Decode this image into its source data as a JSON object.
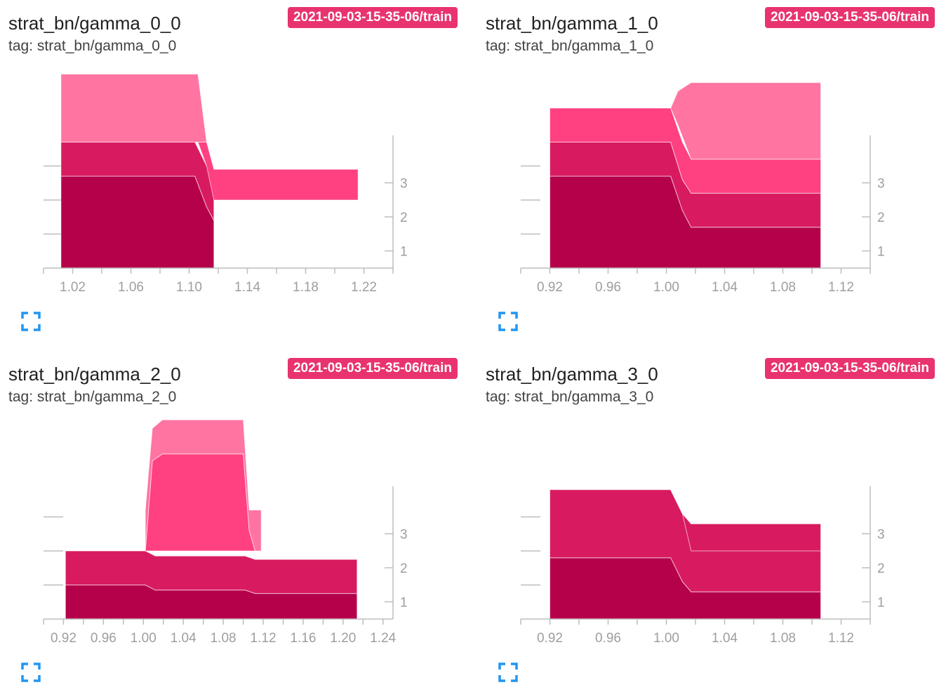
{
  "colors": {
    "layers": [
      "#b5004a",
      "#d81b60",
      "#ff4081",
      "#ff74a0"
    ],
    "axis": "#bdbdbd",
    "tick_text": "#9e9e9e",
    "badge": "#e8336f",
    "expand_icon": "#2196f3"
  },
  "cards": [
    {
      "title": "strat_bn/gamma_0_0",
      "tag": "tag: strat_bn/gamma_0_0",
      "run": "2021-09-03-15-35-06/train",
      "expand_icon": "fullscreen-icon"
    },
    {
      "title": "strat_bn/gamma_1_0",
      "tag": "tag: strat_bn/gamma_1_0",
      "run": "2021-09-03-15-35-06/train",
      "expand_icon": "fullscreen-icon"
    },
    {
      "title": "strat_bn/gamma_2_0",
      "tag": "tag: strat_bn/gamma_2_0",
      "run": "2021-09-03-15-35-06/train",
      "expand_icon": "fullscreen-icon"
    },
    {
      "title": "strat_bn/gamma_3_0",
      "tag": "tag: strat_bn/gamma_3_0",
      "run": "2021-09-03-15-35-06/train",
      "expand_icon": "fullscreen-icon"
    }
  ],
  "chart_data": [
    {
      "type": "area",
      "xlim": [
        1.0,
        1.24
      ],
      "x_ticks": [
        1.02,
        1.06,
        1.1,
        1.14,
        1.18,
        1.22
      ],
      "x_tick_labels": [
        "1.02",
        "1.06",
        "1.10",
        "1.14",
        "1.18",
        "1.22"
      ],
      "y_ticks": [
        1,
        2,
        3
      ],
      "y_tick_labels": [
        "1",
        "2",
        "3"
      ],
      "grid": false,
      "layers": [
        {
          "x": [
            1.012,
            1.104,
            1.112,
            1.117
          ],
          "bottom": [
            0,
            0,
            0,
            0
          ],
          "top": [
            2.7,
            2.7,
            1.8,
            1.4
          ]
        },
        {
          "x": [
            1.012,
            1.104,
            1.112,
            1.117
          ],
          "bottom": [
            2.7,
            2.7,
            1.8,
            1.4
          ],
          "top": [
            3.7,
            3.7,
            3.0,
            2.9
          ]
        },
        {
          "x": [
            1.106,
            1.112,
            1.117,
            1.216
          ],
          "bottom": [
            3.7,
            3.0,
            2.0,
            2.0
          ],
          "top": [
            3.7,
            3.7,
            2.9,
            2.9
          ]
        },
        {
          "x": [
            1.012,
            1.102,
            1.106,
            1.112,
            1.117
          ],
          "bottom": [
            3.7,
            3.7,
            3.7,
            3.7,
            3.7
          ],
          "top": [
            5.7,
            5.7,
            5.7,
            3.7,
            3.7
          ]
        }
      ]
    },
    {
      "type": "area",
      "xlim": [
        0.9,
        1.14
      ],
      "x_ticks": [
        0.92,
        0.96,
        1.0,
        1.04,
        1.08,
        1.12
      ],
      "x_tick_labels": [
        "0.92",
        "0.96",
        "1.00",
        "1.04",
        "1.08",
        "1.12"
      ],
      "y_ticks": [
        1,
        2,
        3
      ],
      "y_tick_labels": [
        "1",
        "2",
        "3"
      ],
      "grid": false,
      "layers": [
        {
          "x": [
            0.92,
            1.003,
            1.011,
            1.017,
            1.106
          ],
          "bottom": [
            0,
            0,
            0,
            0,
            0
          ],
          "top": [
            2.7,
            2.7,
            1.7,
            1.2,
            1.2
          ]
        },
        {
          "x": [
            0.92,
            1.003,
            1.011,
            1.017,
            1.106
          ],
          "bottom": [
            2.7,
            2.7,
            1.7,
            1.2,
            1.2
          ],
          "top": [
            3.7,
            3.7,
            2.6,
            2.2,
            2.2
          ]
        },
        {
          "x": [
            0.92,
            1.003,
            1.011,
            1.017,
            1.106
          ],
          "bottom": [
            3.7,
            3.7,
            2.6,
            2.2,
            2.2
          ],
          "top": [
            4.7,
            4.7,
            3.7,
            3.2,
            3.2
          ]
        },
        {
          "x": [
            1.003,
            1.008,
            1.017,
            1.106
          ],
          "bottom": [
            4.7,
            4.2,
            3.2,
            3.2
          ],
          "top": [
            4.7,
            5.2,
            5.45,
            5.45
          ]
        }
      ]
    },
    {
      "type": "area",
      "xlim": [
        0.9,
        1.25
      ],
      "x_ticks": [
        0.92,
        0.96,
        1.0,
        1.04,
        1.08,
        1.12,
        1.16,
        1.2,
        1.24
      ],
      "x_tick_labels": [
        "0.92",
        "0.96",
        "1.00",
        "1.04",
        "1.08",
        "1.12",
        "1.16",
        "1.20",
        "1.24"
      ],
      "y_ticks": [
        1,
        2,
        3
      ],
      "y_tick_labels": [
        "1",
        "2",
        "3"
      ],
      "grid": false,
      "layers": [
        {
          "x": [
            0.922,
            1.002,
            1.012,
            1.102,
            1.112,
            1.214
          ],
          "bottom": [
            0,
            0,
            0,
            0,
            0,
            0
          ],
          "top": [
            1.0,
            1.0,
            0.85,
            0.85,
            0.75,
            0.75
          ]
        },
        {
          "x": [
            0.922,
            1.002,
            1.012,
            1.102,
            1.112,
            1.214
          ],
          "bottom": [
            1.0,
            1.0,
            0.85,
            0.85,
            0.75,
            0.75
          ],
          "top": [
            2.0,
            2.0,
            1.85,
            1.85,
            1.75,
            1.75
          ]
        },
        {
          "x": [
            1.002,
            1.009,
            1.019,
            1.1,
            1.106,
            1.112
          ],
          "bottom": [
            2.0,
            2.0,
            2.0,
            2.0,
            2.0,
            2.0
          ],
          "top": [
            2.0,
            4.65,
            4.85,
            4.85,
            2.6,
            2.0
          ]
        },
        {
          "x": [
            1.002,
            1.009,
            1.019,
            1.1,
            1.106,
            1.112,
            1.118
          ],
          "bottom": [
            2.0,
            4.65,
            4.85,
            4.85,
            2.6,
            2.0,
            2.0
          ],
          "top": [
            3.2,
            5.6,
            5.85,
            5.85,
            3.2,
            3.2,
            3.2
          ]
        }
      ]
    },
    {
      "type": "area",
      "xlim": [
        0.9,
        1.14
      ],
      "x_ticks": [
        0.92,
        0.96,
        1.0,
        1.04,
        1.08,
        1.12
      ],
      "x_tick_labels": [
        "0.92",
        "0.96",
        "1.00",
        "1.04",
        "1.08",
        "1.12"
      ],
      "y_ticks": [
        1,
        2,
        3
      ],
      "y_tick_labels": [
        "1",
        "2",
        "3"
      ],
      "grid": false,
      "layers": [
        {
          "x": [
            0.92,
            1.003,
            1.011,
            1.017,
            1.106
          ],
          "bottom": [
            0,
            0,
            0,
            0,
            0
          ],
          "top": [
            1.8,
            1.8,
            1.1,
            0.8,
            0.8
          ]
        },
        {
          "x": [
            0.92,
            1.003,
            1.011,
            1.017,
            1.106
          ],
          "bottom": [
            1.8,
            1.8,
            1.1,
            0.8,
            0.8
          ],
          "top": [
            3.8,
            3.8,
            3.1,
            2.8,
            2.8
          ]
        },
        {
          "x": [
            1.003,
            1.011,
            1.017,
            1.106
          ],
          "bottom": [
            3.8,
            3.1,
            2.0,
            2.0
          ],
          "top": [
            3.8,
            3.1,
            2.0,
            2.0
          ]
        },
        {
          "x": [
            1.003,
            1.011,
            1.017,
            1.106
          ],
          "bottom": [
            3.8,
            3.1,
            2.8,
            2.8
          ],
          "top": [
            3.8,
            3.1,
            2.8,
            2.8
          ]
        }
      ]
    }
  ]
}
